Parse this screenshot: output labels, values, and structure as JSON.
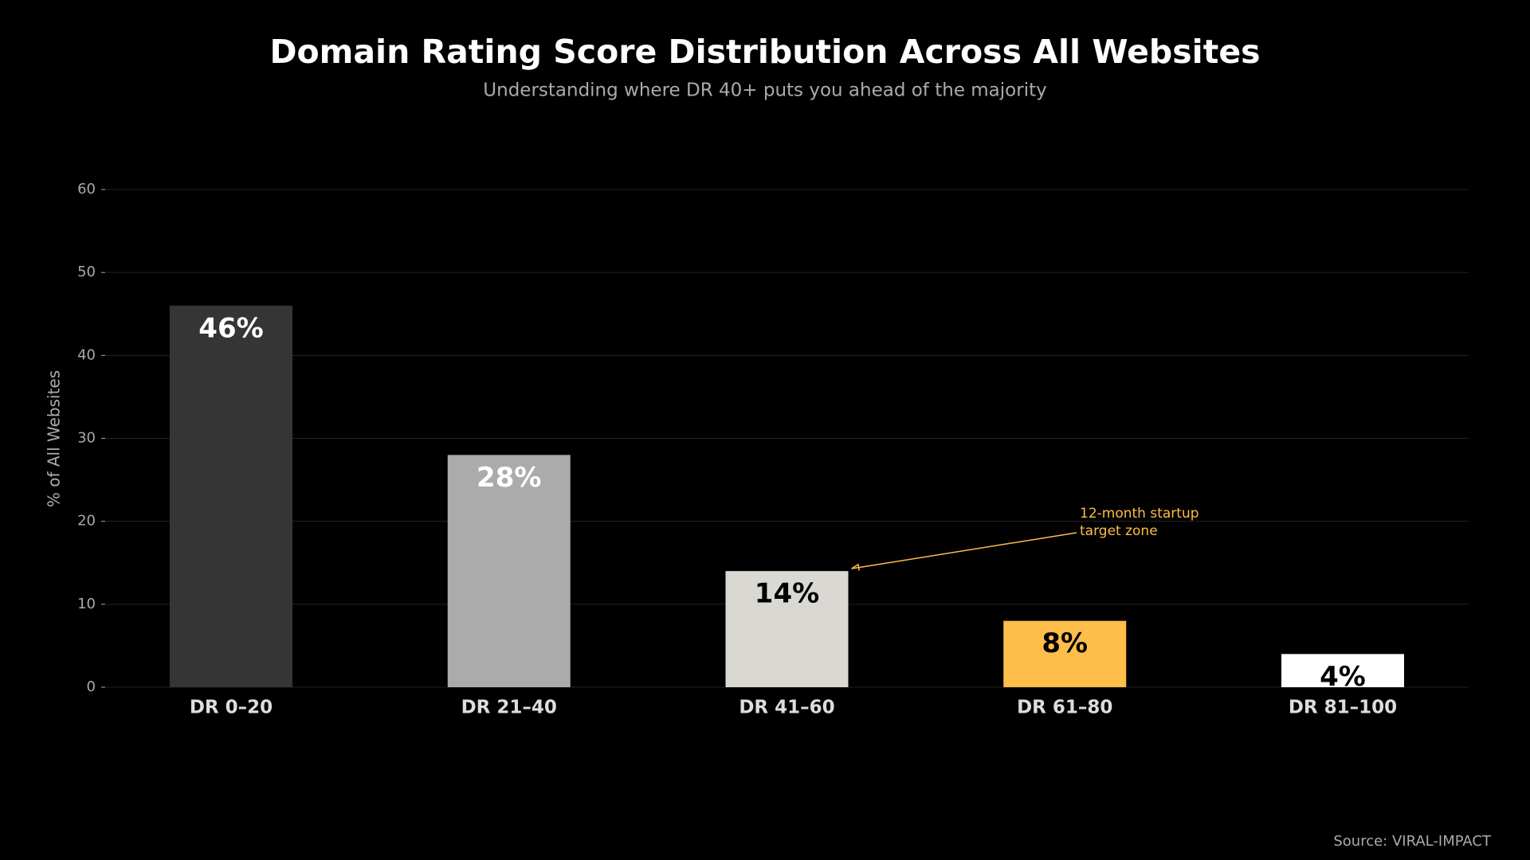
{
  "chart_data": {
    "type": "bar",
    "title": "Domain Rating Score Distribution Across All Websites",
    "subtitle": "Understanding where DR 40+ puts you ahead of the majority",
    "y_label": "% of All Websites",
    "categories": [
      "DR 0–20",
      "DR 21–40",
      "DR 41–60",
      "DR 61–80",
      "DR 81–100"
    ],
    "values": [
      46,
      28,
      14,
      8,
      4
    ],
    "value_labels": [
      "46%",
      "28%",
      "14%",
      "8%",
      "4%"
    ],
    "colors": [
      "#353535",
      "#ababab",
      "#d9d8d3",
      "#ffbd4a",
      "#ffffff"
    ],
    "value_label_colors": [
      "#ffffff",
      "#ffffff",
      "#000000",
      "#000000",
      "#000000"
    ],
    "ylim": [
      0,
      60
    ],
    "yticks": [
      0,
      10,
      20,
      30,
      40,
      50,
      60
    ],
    "grid": true,
    "annotation": {
      "lines": [
        "12-month startup",
        "target zone"
      ],
      "color": "#ffbd4a"
    },
    "source": "Source: VIRAL-IMPACT"
  }
}
